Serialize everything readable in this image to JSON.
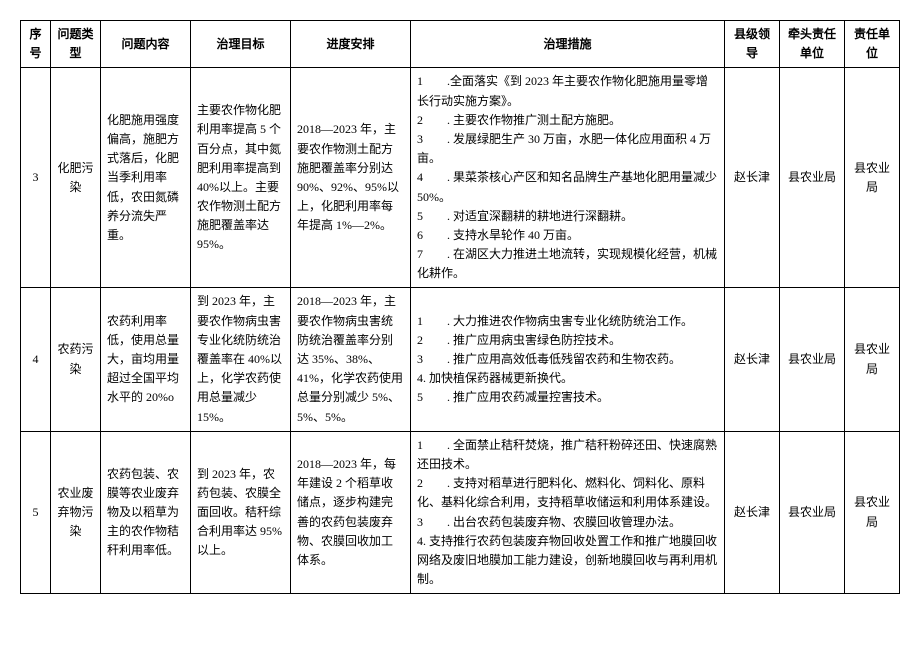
{
  "table": {
    "headers": {
      "seq": "序号",
      "type": "问题类型",
      "content": "问题内容",
      "target": "治理目标",
      "schedule": "进度安排",
      "measures": "治理措施",
      "leader": "县级领导",
      "lead_unit": "牵头责任单位",
      "resp_unit": "责任单位"
    },
    "rows": [
      {
        "seq": "3",
        "type": "化肥污染",
        "content": "化肥施用强度偏高，施肥方式落后，化肥当季利用率低，农田氮磷养分流失严重。",
        "target": "主要农作物化肥利用率提高 5 个百分点，其中氮肥利用率提高到 40%以上。主要农作物测土配方施肥覆盖率达 95%。",
        "schedule": "2018—2023 年，主要农作物测土配方施肥覆盖率分别达 90%、92%、95%以上，化肥利用率每年提高 1%—2%。",
        "measures": "1　　.全面落实《到 2023 年主要农作物化肥施用量零增长行动实施方案》。\n2　　. 主要农作物推广测土配方施肥。\n3　　. 发展绿肥生产 30 万亩，水肥一体化应用面积 4 万亩。\n4　　. 果菜茶核心产区和知名品牌生产基地化肥用量减少 50%。\n5　　. 对适宜深翻耕的耕地进行深翻耕。\n6　　. 支持水旱轮作 40 万亩。\n7　　. 在湖区大力推进土地流转，实现规模化经营，机械化耕作。",
        "leader": "赵长津",
        "lead_unit": "县农业局",
        "resp_unit": "县农业局"
      },
      {
        "seq": "4",
        "type": "农药污染",
        "content": "农药利用率低，使用总量大，亩均用量超过全国平均水平的 20%o",
        "target": "到 2023 年，主要农作物病虫害专业化统防统治覆盖率在 40%以上，化学农药使用总量减少 15%。",
        "schedule": "2018—2023 年，主要农作物病虫害统防统治覆盖率分别达 35%、38%、41%，化学农药使用总量分别减少 5%、5%、5%。",
        "measures": "1　　. 大力推进农作物病虫害专业化统防统治工作。\n2　　. 推广应用病虫害绿色防控技术。\n3　　. 推广应用高效低毒低残留农药和生物农药。\n4. 加快植保药器械更新换代。\n5　　. 推广应用农药减量控害技术。",
        "leader": "赵长津",
        "lead_unit": "县农业局",
        "resp_unit": "县农业局"
      },
      {
        "seq": "5",
        "type": "农业废弃物污染",
        "content": "农药包装、农膜等农业废弃物及以稻草为主的农作物秸秆利用率低。",
        "target": "到 2023 年，农药包装、农膜全面回收。秸秆综合利用率达 95%以上。",
        "schedule": "2018—2023 年，每年建设 2 个稻草收储点，逐步构建完善的农药包装废弃物、农膜回收加工体系。",
        "measures": "1　　. 全面禁止秸秆焚烧，推广秸秆粉碎还田、快速腐熟还田技术。\n2　　. 支持对稻草进行肥料化、燃料化、饲料化、原料化、基料化综合利用，支持稻草收储运和利用体系建设。\n3　　. 出台农药包装废弃物、农膜回收管理办法。\n4. 支持推行农药包装废弃物回收处置工作和推广地膜回收网络及废旧地膜加工能力建设，创新地膜回收与再利用机制。",
        "leader": "赵长津",
        "lead_unit": "县农业局",
        "resp_unit": "县农业局"
      }
    ]
  }
}
